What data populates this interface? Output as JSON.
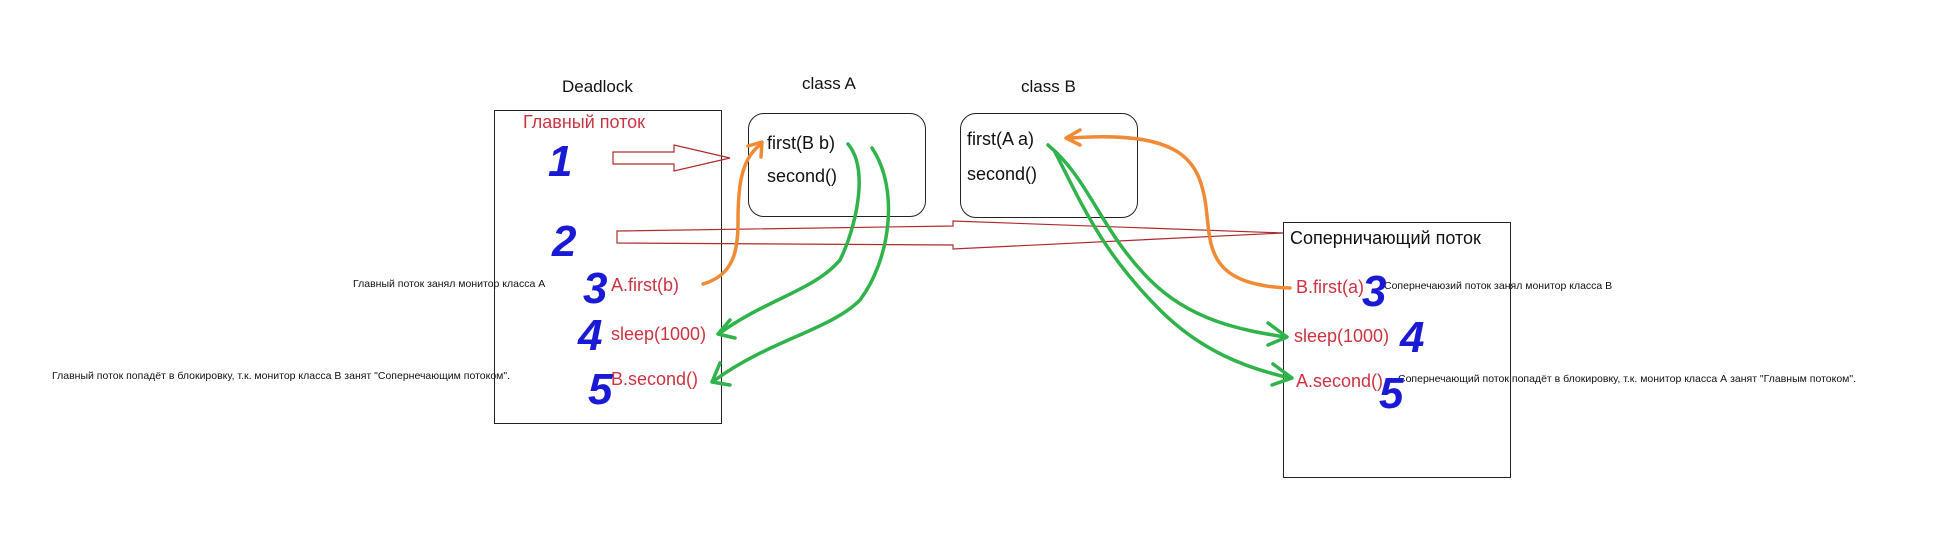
{
  "titles": {
    "deadlock": "Deadlock",
    "class_a": "class A",
    "class_b": "class B"
  },
  "main_thread": {
    "label": "Главный поток",
    "steps": {
      "s3": "A.first(b)",
      "s4": "sleep(1000)",
      "s5": "B.second()"
    },
    "note_3": "Главный поток занял монитор класса А",
    "note_5": "Главный поток попадёт в блокировку, т.к. монитор класса B занят \"Сопернечающим потоком\"."
  },
  "class_a": {
    "method1": "first(B b)",
    "method2": "second()"
  },
  "class_b": {
    "method1": "first(A a)",
    "method2": "second()"
  },
  "rival_thread": {
    "label": "Соперничающий поток",
    "steps": {
      "s3": "B.first(a)",
      "s4": "sleep(1000)",
      "s5": "A.second()"
    },
    "note_3": "Сопернечаюзий поток занял монитор класса B",
    "note_5": "Сопернечающий поток попадёт в блокировку, т.к. монитор класса А занят \"Главным потоком\"."
  },
  "step_numbers": {
    "n1": "1",
    "n2": "2",
    "n3": "3",
    "n4": "4",
    "n5": "5",
    "r3": "3",
    "r4": "4",
    "r5": "5"
  },
  "colors": {
    "text_red": "#cc3340",
    "number_blue": "#1a1ad6",
    "arrow_green": "#2fb34a",
    "arrow_orange": "#f08a35",
    "arrow_outline_red": "#b02a2a"
  }
}
